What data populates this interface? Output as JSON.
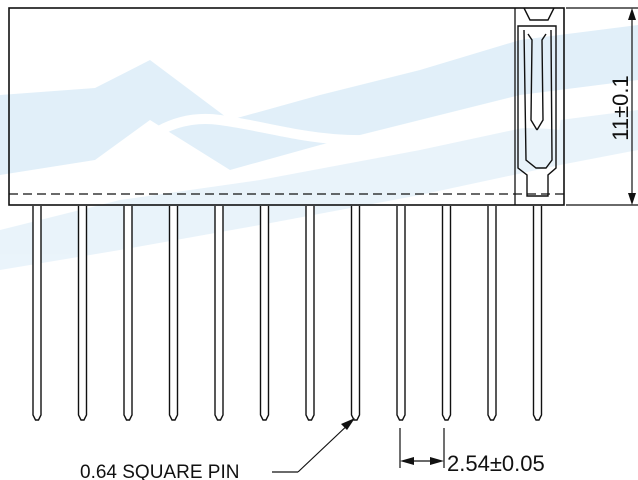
{
  "drawing": {
    "pin_count": 12,
    "height_dimension": "11±0.1",
    "pitch_dimension": "2.54±0.05",
    "pin_note": "0.64 SQUARE PIN"
  },
  "colors": {
    "line": "#111111",
    "watermark": "#dcedf8",
    "background": "#ffffff"
  }
}
